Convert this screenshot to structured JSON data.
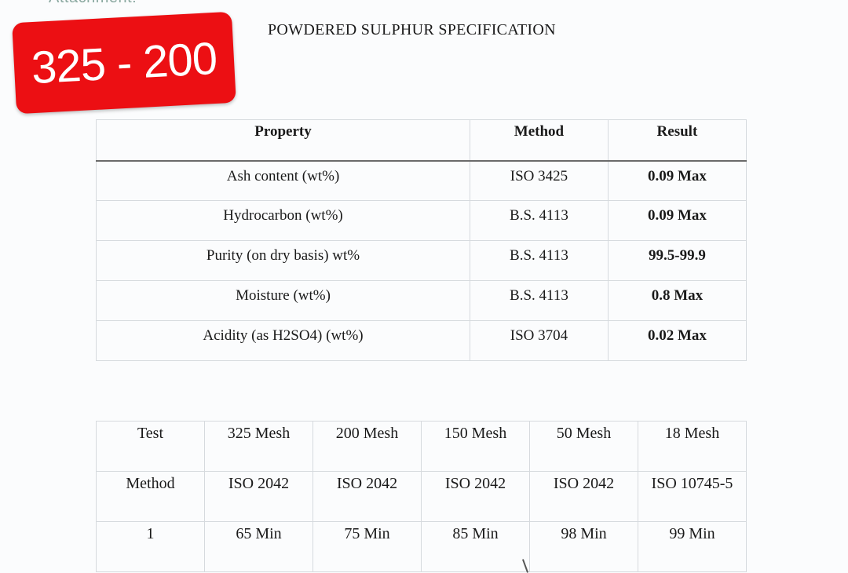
{
  "header": {
    "top_cut_text": "Attachment:",
    "badge_text": "325 - 200",
    "badge_color": "#ec0f13",
    "title": "POWDERED SULPHUR SPECIFICATION"
  },
  "spec_table": {
    "headers": [
      "Property",
      "Method",
      "Result"
    ],
    "rows": [
      {
        "property": "Ash content (wt%)",
        "method": "ISO 3425",
        "result": "0.09 Max"
      },
      {
        "property": "Hydrocarbon (wt%)",
        "method": "B.S. 4113",
        "result": "0.09 Max"
      },
      {
        "property": "Purity (on dry basis) wt%",
        "method": "B.S. 4113",
        "result": "99.5-99.9"
      },
      {
        "property": "Moisture (wt%)",
        "method": "B.S. 4113",
        "result": "0.8 Max"
      },
      {
        "property": "Acidity (as H2SO4) (wt%)",
        "method": "ISO 3704",
        "result": "0.02 Max"
      }
    ]
  },
  "mesh_table": {
    "rows": [
      [
        "Test",
        "325 Mesh",
        "200 Mesh",
        "150 Mesh",
        "50 Mesh",
        "18 Mesh"
      ],
      [
        "Method",
        "ISO 2042",
        "ISO 2042",
        "ISO 2042",
        "ISO 2042",
        "ISO 10745-5"
      ],
      [
        "1",
        "65 Min",
        "75 Min",
        "85 Min",
        "98 Min",
        "99 Min"
      ]
    ]
  }
}
